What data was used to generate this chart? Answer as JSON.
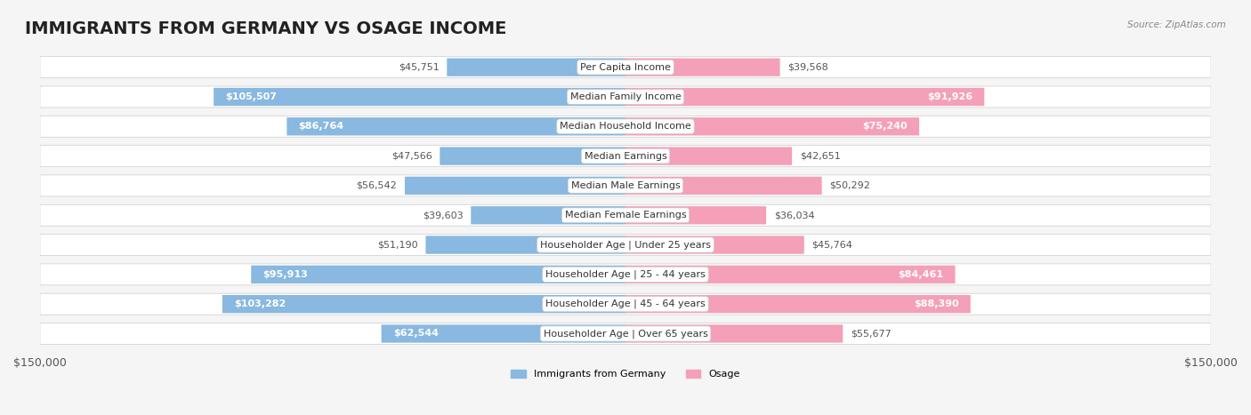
{
  "title": "IMMIGRANTS FROM GERMANY VS OSAGE INCOME",
  "source": "Source: ZipAtlas.com",
  "categories": [
    "Per Capita Income",
    "Median Family Income",
    "Median Household Income",
    "Median Earnings",
    "Median Male Earnings",
    "Median Female Earnings",
    "Householder Age | Under 25 years",
    "Householder Age | 25 - 44 years",
    "Householder Age | 45 - 64 years",
    "Householder Age | Over 65 years"
  ],
  "germany_values": [
    45751,
    105507,
    86764,
    47566,
    56542,
    39603,
    51190,
    95913,
    103282,
    62544
  ],
  "osage_values": [
    39568,
    91926,
    75240,
    42651,
    50292,
    36034,
    45764,
    84461,
    88390,
    55677
  ],
  "germany_color": "#89b8e0",
  "germany_color_dark": "#5b9fd4",
  "osage_color": "#f4a0b8",
  "osage_color_dark": "#ee6fa0",
  "germany_label": "Immigrants from Germany",
  "osage_label": "Osage",
  "x_max": 150000,
  "background_color": "#f5f5f5",
  "row_bg_color": "#ffffff",
  "title_fontsize": 14,
  "axis_label_fontsize": 9,
  "bar_label_fontsize": 8,
  "category_fontsize": 8
}
